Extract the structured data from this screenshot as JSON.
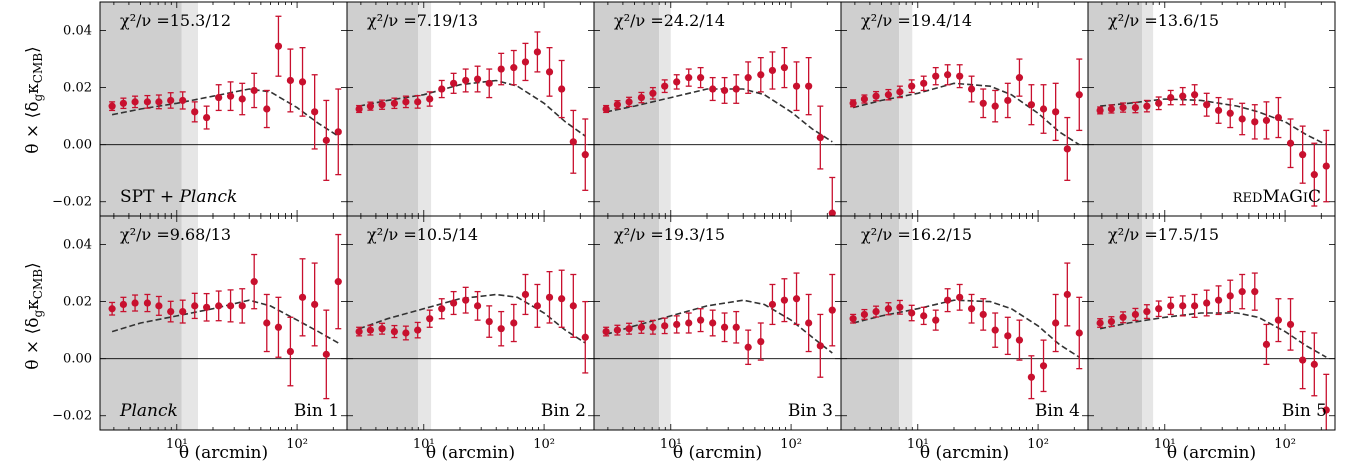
{
  "figure": {
    "ylabel": "θ × ⟨δ_g κ_CMB⟩",
    "xlabel": "θ (arcmin)",
    "rows": [
      "SPT + Planck",
      "Planck"
    ],
    "row_labels": [
      "SPT + Planck",
      "Planck"
    ],
    "col_labels": [
      "",
      "",
      "",
      "",
      "redMaGiC"
    ],
    "bin_labels": [
      "Bin 1",
      "Bin 2",
      "Bin 3",
      "Bin 4",
      "Bin 5"
    ],
    "yticks": [
      "0.04",
      "0.02",
      "0.00",
      "−0.02"
    ],
    "xticks": [
      "10¹",
      "10²"
    ],
    "colors": {
      "points": "#c8102e",
      "model": "#333333",
      "mask_dark": "#cfcfcf",
      "mask_light": "#e6e6e6"
    }
  },
  "chart_data": [
    {
      "type": "scatter",
      "row": 0,
      "col": 0,
      "chi2": "χ²/ν =15.3/12",
      "xscale": "log",
      "xlim": [
        2.3,
        260
      ],
      "ylim": [
        -0.025,
        0.05
      ],
      "mask_dark": [
        2.3,
        11
      ],
      "mask_light": [
        11,
        15
      ],
      "x": [
        2.9,
        3.6,
        4.5,
        5.7,
        7.1,
        8.9,
        11.2,
        14.1,
        17.7,
        22.3,
        28,
        35,
        44,
        56,
        70,
        88,
        111,
        140,
        175,
        220
      ],
      "y": [
        0.0135,
        0.0145,
        0.015,
        0.015,
        0.015,
        0.0155,
        0.0155,
        0.0115,
        0.0095,
        0.0165,
        0.017,
        0.016,
        0.019,
        0.0125,
        0.0345,
        0.0225,
        0.022,
        0.0115,
        0.0015,
        0.0045
      ],
      "err": [
        0.0015,
        0.0018,
        0.002,
        0.0022,
        0.0024,
        0.0027,
        0.003,
        0.0035,
        0.004,
        0.0045,
        0.005,
        0.0055,
        0.006,
        0.0065,
        0.0105,
        0.011,
        0.012,
        0.013,
        0.014,
        0.015
      ],
      "model_x": [
        2.9,
        5,
        10,
        20,
        40,
        60,
        100,
        150,
        220
      ],
      "model_y": [
        0.0105,
        0.0125,
        0.0145,
        0.017,
        0.0195,
        0.0185,
        0.013,
        0.0075,
        0.003
      ]
    },
    {
      "type": "scatter",
      "row": 0,
      "col": 1,
      "chi2": "χ²/ν =7.19/13",
      "xscale": "log",
      "xlim": [
        2.3,
        260
      ],
      "ylim": [
        -0.025,
        0.05
      ],
      "mask_dark": [
        2.3,
        9
      ],
      "mask_light": [
        9,
        11.5
      ],
      "x": [
        2.9,
        3.6,
        4.5,
        5.7,
        7.1,
        8.9,
        11.2,
        14.1,
        17.7,
        22.3,
        28,
        35,
        44,
        56,
        70,
        88,
        111,
        140,
        175,
        220
      ],
      "y": [
        0.0125,
        0.0135,
        0.014,
        0.0145,
        0.015,
        0.015,
        0.016,
        0.0195,
        0.0215,
        0.0225,
        0.023,
        0.0215,
        0.0265,
        0.027,
        0.029,
        0.0325,
        0.0255,
        0.0195,
        0.001,
        -0.0035
      ],
      "err": [
        0.0012,
        0.0014,
        0.0016,
        0.0018,
        0.002,
        0.0022,
        0.0025,
        0.003,
        0.0035,
        0.004,
        0.0045,
        0.005,
        0.0055,
        0.006,
        0.0065,
        0.007,
        0.0085,
        0.01,
        0.011,
        0.0125
      ],
      "model_x": [
        2.9,
        5,
        10,
        20,
        40,
        60,
        100,
        150,
        220
      ],
      "model_y": [
        0.0135,
        0.0155,
        0.0175,
        0.021,
        0.0225,
        0.0205,
        0.0145,
        0.008,
        0.003
      ]
    },
    {
      "type": "scatter",
      "row": 0,
      "col": 2,
      "chi2": "χ²/ν =24.2/14",
      "xscale": "log",
      "xlim": [
        2.3,
        260
      ],
      "ylim": [
        -0.025,
        0.05
      ],
      "mask_dark": [
        2.3,
        8
      ],
      "mask_light": [
        8,
        10
      ],
      "x": [
        2.9,
        3.6,
        4.5,
        5.7,
        7.1,
        8.9,
        11.2,
        14.1,
        17.7,
        22.3,
        28,
        35,
        44,
        56,
        70,
        88,
        111,
        140,
        175,
        220
      ],
      "y": [
        0.0125,
        0.014,
        0.015,
        0.0165,
        0.018,
        0.0205,
        0.022,
        0.0235,
        0.0235,
        0.0195,
        0.019,
        0.0195,
        0.0235,
        0.0245,
        0.026,
        0.027,
        0.0205,
        0.0205,
        0.0025,
        -0.024
      ],
      "err": [
        0.0012,
        0.0014,
        0.0016,
        0.0018,
        0.002,
        0.0022,
        0.0025,
        0.003,
        0.0035,
        0.004,
        0.0045,
        0.005,
        0.0055,
        0.006,
        0.0065,
        0.007,
        0.0085,
        0.01,
        0.011,
        0.0125
      ],
      "model_x": [
        2.9,
        5,
        10,
        20,
        40,
        60,
        100,
        150,
        220
      ],
      "model_y": [
        0.0115,
        0.0135,
        0.0165,
        0.0195,
        0.0195,
        0.0175,
        0.0115,
        0.0055,
        0.001
      ]
    },
    {
      "type": "scatter",
      "row": 0,
      "col": 3,
      "chi2": "χ²/ν =19.4/14",
      "xscale": "log",
      "xlim": [
        2.3,
        260
      ],
      "ylim": [
        -0.025,
        0.05
      ],
      "mask_dark": [
        2.3,
        7
      ],
      "mask_light": [
        7,
        9
      ],
      "x": [
        2.9,
        3.6,
        4.5,
        5.7,
        7.1,
        8.9,
        11.2,
        14.1,
        17.7,
        22.3,
        28,
        35,
        44,
        56,
        70,
        88,
        111,
        140,
        175,
        220
      ],
      "y": [
        0.0145,
        0.016,
        0.017,
        0.0175,
        0.0185,
        0.0205,
        0.0215,
        0.024,
        0.0245,
        0.024,
        0.0195,
        0.0145,
        0.0135,
        0.0155,
        0.0235,
        0.014,
        0.0125,
        0.0115,
        -0.0015,
        0.0175
      ],
      "err": [
        0.0012,
        0.0014,
        0.0016,
        0.0018,
        0.002,
        0.0022,
        0.0025,
        0.003,
        0.0035,
        0.004,
        0.0045,
        0.005,
        0.0055,
        0.006,
        0.0065,
        0.007,
        0.0085,
        0.01,
        0.011,
        0.0125
      ],
      "model_x": [
        2.9,
        5,
        10,
        20,
        40,
        60,
        100,
        150,
        220
      ],
      "model_y": [
        0.013,
        0.0155,
        0.018,
        0.0215,
        0.0205,
        0.0175,
        0.011,
        0.0045,
        0.0
      ]
    },
    {
      "type": "scatter",
      "row": 0,
      "col": 4,
      "chi2": "χ²/ν =13.6/15",
      "xscale": "log",
      "xlim": [
        2.3,
        260
      ],
      "ylim": [
        -0.025,
        0.05
      ],
      "mask_dark": [
        2.3,
        6.5
      ],
      "mask_light": [
        6.5,
        8
      ],
      "x": [
        2.9,
        3.6,
        4.5,
        5.7,
        7.1,
        8.9,
        11.2,
        14.1,
        17.7,
        22.3,
        28,
        35,
        44,
        56,
        70,
        88,
        111,
        140,
        175,
        220
      ],
      "y": [
        0.012,
        0.0125,
        0.013,
        0.013,
        0.0135,
        0.0145,
        0.0165,
        0.017,
        0.0175,
        0.014,
        0.012,
        0.011,
        0.009,
        0.008,
        0.0085,
        0.0095,
        0.0005,
        -0.0035,
        -0.0105,
        -0.0075
      ],
      "err": [
        0.0012,
        0.0014,
        0.0016,
        0.0018,
        0.002,
        0.0022,
        0.0025,
        0.003,
        0.0035,
        0.004,
        0.0045,
        0.005,
        0.0055,
        0.006,
        0.0065,
        0.007,
        0.0085,
        0.01,
        0.011,
        0.0125
      ],
      "model_x": [
        2.9,
        5,
        10,
        20,
        40,
        60,
        100,
        150,
        220
      ],
      "model_y": [
        0.0135,
        0.0145,
        0.016,
        0.0155,
        0.0135,
        0.0115,
        0.008,
        0.0035,
        0.0
      ]
    },
    {
      "type": "scatter",
      "row": 1,
      "col": 0,
      "chi2": "χ²/ν =9.68/13",
      "xscale": "log",
      "xlim": [
        2.3,
        260
      ],
      "ylim": [
        -0.025,
        0.05
      ],
      "mask_dark": [
        2.3,
        11
      ],
      "mask_light": [
        11,
        15
      ],
      "x": [
        2.9,
        3.6,
        4.5,
        5.7,
        7.1,
        8.9,
        11.2,
        14.1,
        17.7,
        22.3,
        28,
        35,
        44,
        56,
        70,
        88,
        111,
        140,
        175,
        220
      ],
      "y": [
        0.0175,
        0.019,
        0.0195,
        0.0195,
        0.0185,
        0.0165,
        0.0165,
        0.0185,
        0.018,
        0.0185,
        0.0185,
        0.0185,
        0.027,
        0.0125,
        0.011,
        0.0025,
        0.0215,
        0.019,
        0.0015,
        0.027
      ],
      "err": [
        0.0022,
        0.0025,
        0.0028,
        0.003,
        0.0033,
        0.0036,
        0.004,
        0.0044,
        0.0048,
        0.0052,
        0.0056,
        0.006,
        0.0095,
        0.01,
        0.0105,
        0.012,
        0.0135,
        0.0145,
        0.0155,
        0.0165
      ],
      "model_x": [
        2.9,
        5,
        10,
        20,
        40,
        60,
        100,
        150,
        220
      ],
      "model_y": [
        0.0095,
        0.0125,
        0.015,
        0.0175,
        0.0205,
        0.0185,
        0.0135,
        0.0095,
        0.0055
      ]
    },
    {
      "type": "scatter",
      "row": 1,
      "col": 1,
      "chi2": "χ²/ν =10.5/14",
      "xscale": "log",
      "xlim": [
        2.3,
        260
      ],
      "ylim": [
        -0.025,
        0.05
      ],
      "mask_dark": [
        2.3,
        9
      ],
      "mask_light": [
        9,
        11.5
      ],
      "x": [
        2.9,
        3.6,
        4.5,
        5.7,
        7.1,
        8.9,
        11.2,
        14.1,
        17.7,
        22.3,
        28,
        35,
        44,
        56,
        70,
        88,
        111,
        140,
        175,
        220
      ],
      "y": [
        0.0095,
        0.01,
        0.0105,
        0.0095,
        0.009,
        0.01,
        0.014,
        0.0175,
        0.0195,
        0.0205,
        0.0185,
        0.013,
        0.0105,
        0.0125,
        0.0225,
        0.0185,
        0.0215,
        0.021,
        0.0185,
        0.0075
      ],
      "err": [
        0.0015,
        0.0017,
        0.0019,
        0.0021,
        0.0024,
        0.0027,
        0.003,
        0.0035,
        0.004,
        0.0045,
        0.005,
        0.0055,
        0.006,
        0.0065,
        0.007,
        0.0075,
        0.009,
        0.01,
        0.011,
        0.0125
      ],
      "model_x": [
        2.9,
        5,
        10,
        20,
        40,
        60,
        100,
        150,
        220
      ],
      "model_y": [
        0.0105,
        0.014,
        0.0175,
        0.021,
        0.0225,
        0.0215,
        0.016,
        0.01,
        0.0055
      ]
    },
    {
      "type": "scatter",
      "row": 1,
      "col": 2,
      "chi2": "χ²/ν =19.3/15",
      "xscale": "log",
      "xlim": [
        2.3,
        260
      ],
      "ylim": [
        -0.025,
        0.05
      ],
      "mask_dark": [
        2.3,
        8
      ],
      "mask_light": [
        8,
        10
      ],
      "x": [
        2.9,
        3.6,
        4.5,
        5.7,
        7.1,
        8.9,
        11.2,
        14.1,
        17.7,
        22.3,
        28,
        35,
        44,
        56,
        70,
        88,
        111,
        140,
        175,
        220
      ],
      "y": [
        0.0095,
        0.01,
        0.0105,
        0.011,
        0.011,
        0.0115,
        0.012,
        0.0125,
        0.0135,
        0.0125,
        0.011,
        0.011,
        0.004,
        0.006,
        0.019,
        0.0205,
        0.021,
        0.0125,
        0.0045,
        0.017
      ],
      "err": [
        0.0015,
        0.0017,
        0.0019,
        0.0021,
        0.0024,
        0.0027,
        0.003,
        0.0035,
        0.004,
        0.0045,
        0.005,
        0.0055,
        0.006,
        0.0065,
        0.007,
        0.0075,
        0.009,
        0.01,
        0.011,
        0.0125
      ],
      "model_x": [
        2.9,
        5,
        10,
        20,
        40,
        60,
        100,
        150,
        220
      ],
      "model_y": [
        0.0085,
        0.0115,
        0.015,
        0.0185,
        0.0205,
        0.019,
        0.0135,
        0.0075,
        0.002
      ]
    },
    {
      "type": "scatter",
      "row": 1,
      "col": 3,
      "chi2": "χ²/ν =16.2/15",
      "xscale": "log",
      "xlim": [
        2.3,
        260
      ],
      "ylim": [
        -0.025,
        0.05
      ],
      "mask_dark": [
        2.3,
        7
      ],
      "mask_light": [
        7,
        9
      ],
      "x": [
        2.9,
        3.6,
        4.5,
        5.7,
        7.1,
        8.9,
        11.2,
        14.1,
        17.7,
        22.3,
        28,
        35,
        44,
        56,
        70,
        88,
        111,
        140,
        175,
        220
      ],
      "y": [
        0.014,
        0.0155,
        0.0165,
        0.0175,
        0.018,
        0.016,
        0.015,
        0.0135,
        0.0205,
        0.0215,
        0.0175,
        0.0155,
        0.01,
        0.008,
        0.0065,
        -0.0065,
        -0.0025,
        0.0125,
        0.0225,
        0.009
      ],
      "err": [
        0.0015,
        0.0017,
        0.0019,
        0.0021,
        0.0024,
        0.0027,
        0.003,
        0.0035,
        0.004,
        0.0045,
        0.005,
        0.0055,
        0.006,
        0.0065,
        0.007,
        0.0075,
        0.009,
        0.01,
        0.011,
        0.0125
      ],
      "model_x": [
        2.9,
        5,
        10,
        20,
        40,
        60,
        100,
        150,
        220
      ],
      "model_y": [
        0.0125,
        0.015,
        0.0175,
        0.0205,
        0.02,
        0.0175,
        0.0115,
        0.005,
        0.0005
      ]
    },
    {
      "type": "scatter",
      "row": 1,
      "col": 4,
      "chi2": "χ²/ν =17.5/15",
      "xscale": "log",
      "xlim": [
        2.3,
        260
      ],
      "ylim": [
        -0.025,
        0.05
      ],
      "mask_dark": [
        2.3,
        6.5
      ],
      "mask_light": [
        6.5,
        8
      ],
      "x": [
        2.9,
        3.6,
        4.5,
        5.7,
        7.1,
        8.9,
        11.2,
        14.1,
        17.7,
        22.3,
        28,
        35,
        44,
        56,
        70,
        88,
        111,
        140,
        175,
        220
      ],
      "y": [
        0.0125,
        0.013,
        0.0145,
        0.0155,
        0.0165,
        0.0175,
        0.0185,
        0.0185,
        0.0185,
        0.0195,
        0.0205,
        0.022,
        0.0235,
        0.0235,
        0.005,
        0.0135,
        0.012,
        -0.0005,
        -0.002,
        -0.018
      ],
      "err": [
        0.0015,
        0.0017,
        0.0019,
        0.0021,
        0.0024,
        0.0027,
        0.003,
        0.0035,
        0.004,
        0.0045,
        0.005,
        0.0055,
        0.006,
        0.0065,
        0.007,
        0.0075,
        0.009,
        0.01,
        0.011,
        0.0125
      ],
      "model_x": [
        2.9,
        5,
        10,
        20,
        40,
        60,
        100,
        150,
        220
      ],
      "model_y": [
        0.0105,
        0.0125,
        0.0145,
        0.016,
        0.016,
        0.0145,
        0.0095,
        0.0045,
        0.0005
      ]
    }
  ]
}
